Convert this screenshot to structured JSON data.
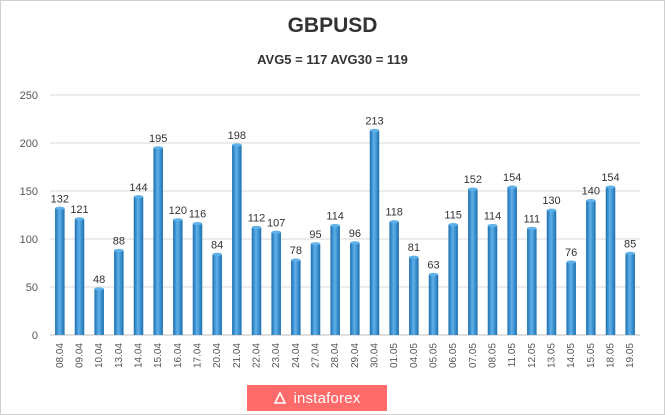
{
  "chart_data": {
    "type": "bar",
    "title": "GBPUSD",
    "subtitle": "AVG5 = 117 AVG30 = 119",
    "categories": [
      "08.04",
      "09.04",
      "10.04",
      "13.04",
      "14.04",
      "15.04",
      "16.04",
      "17.04",
      "20.04",
      "21.04",
      "22.04",
      "23.04",
      "24.04",
      "27.04",
      "28.04",
      "29.04",
      "30.04",
      "01.05",
      "04.05",
      "05.05",
      "06.05",
      "07.05",
      "08.05",
      "11.05",
      "12.05",
      "13.05",
      "14.05",
      "15.05",
      "18.05",
      "19.05"
    ],
    "values": [
      132,
      121,
      48,
      88,
      144,
      195,
      120,
      116,
      84,
      198,
      112,
      107,
      78,
      95,
      114,
      96,
      213,
      118,
      81,
      63,
      115,
      152,
      114,
      154,
      111,
      130,
      76,
      140,
      154,
      85
    ],
    "ylim": [
      0,
      250
    ],
    "yticks": [
      0,
      50,
      100,
      150,
      200,
      250
    ],
    "grid": true,
    "colors": {
      "bar": "#2b8fd6",
      "bar_dark": "#1a6fb0",
      "bar_light": "#5fb1ea"
    }
  },
  "watermark": {
    "text": "instaforex",
    "color": "#ff6b6b"
  }
}
